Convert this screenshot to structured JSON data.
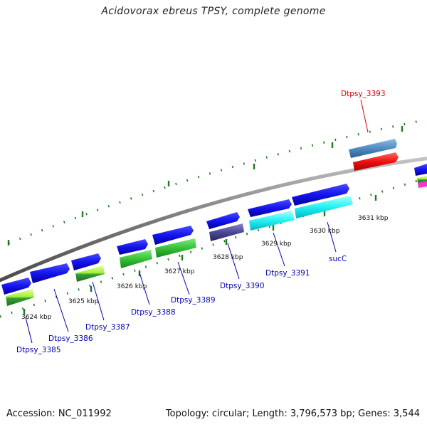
{
  "title": "Acidovorax ebreus TPSY, complete genome",
  "footer": {
    "accession": "Accession: NC_011992",
    "summary": "Topology: circular; Length: 3,796,573 bp; Genes: 3,544"
  },
  "colors": {
    "label_default": "#0000b0",
    "label_highlight": "#e00000",
    "backbone": "#8c8c8c",
    "tick": "#1d7a1d"
  },
  "kbp_ticks": [
    {
      "id": "3624",
      "label": "3624 kbp"
    },
    {
      "id": "3625",
      "label": "3625 kbp"
    },
    {
      "id": "3626",
      "label": "3626 kbp"
    },
    {
      "id": "3627",
      "label": "3627 kbp"
    },
    {
      "id": "3628",
      "label": "3628 kbp"
    },
    {
      "id": "3629",
      "label": "3629 kbp"
    },
    {
      "id": "3630",
      "label": "3630 kbp"
    },
    {
      "id": "3631",
      "label": "3631 kbp"
    }
  ],
  "genes": [
    {
      "id": "dtpsy_3385",
      "label": "Dtpsy_3385",
      "highlight": false
    },
    {
      "id": "dtpsy_3386",
      "label": "Dtpsy_3386",
      "highlight": false
    },
    {
      "id": "dtpsy_3387",
      "label": "Dtpsy_3387",
      "highlight": false
    },
    {
      "id": "dtpsy_3388",
      "label": "Dtpsy_3388",
      "highlight": false
    },
    {
      "id": "dtpsy_3389",
      "label": "Dtpsy_3389",
      "highlight": false
    },
    {
      "id": "dtpsy_3390",
      "label": "Dtpsy_3390",
      "highlight": false
    },
    {
      "id": "dtpsy_3391",
      "label": "Dtpsy_3391",
      "highlight": false
    },
    {
      "id": "sucC",
      "label": "sucC",
      "highlight": false
    },
    {
      "id": "dtpsy_3393",
      "label": "Dtpsy_3393",
      "highlight": true
    }
  ]
}
